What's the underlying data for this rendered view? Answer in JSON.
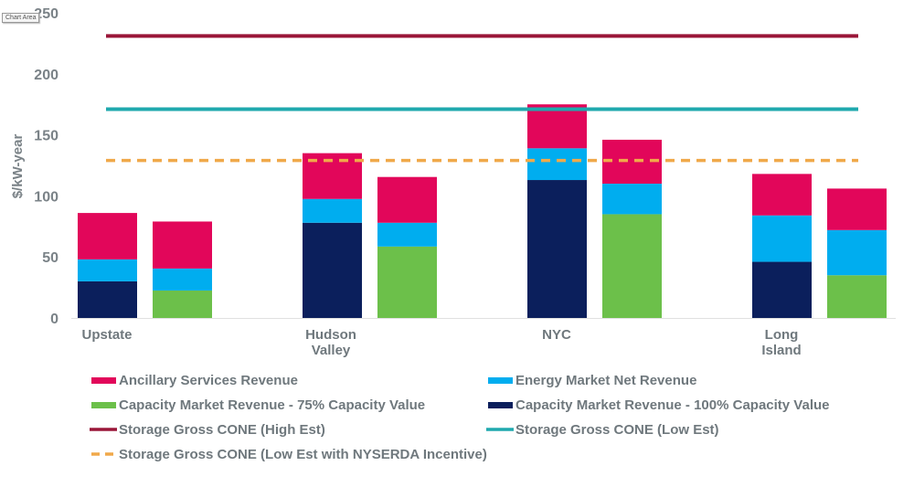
{
  "tooltip": "Chart Area",
  "chart_data": {
    "type": "bar",
    "stacked": true,
    "title": "",
    "xlabel": "",
    "ylabel": "$/kW-year",
    "ylim": [
      0,
      250
    ],
    "yticks": [
      0,
      50,
      100,
      150,
      200,
      250
    ],
    "grid": false,
    "legend_position": "bottom",
    "categories": [
      "Upstate",
      "Hudson Valley",
      "NYC",
      "Long Island"
    ],
    "category_labels": [
      [
        "Upstate"
      ],
      [
        "Hudson",
        "Valley"
      ],
      [
        "NYC"
      ],
      [
        "Long",
        "Island"
      ]
    ],
    "bars_per_category": [
      {
        "name": "100% Capacity Value case",
        "base_series": "Capacity Market Revenue - 100% Capacity Value"
      },
      {
        "name": "75% Capacity Value case",
        "base_series": "Capacity Market Revenue - 75% Capacity Value"
      }
    ],
    "series": [
      {
        "name": "Capacity Market Revenue - 100% Capacity Value",
        "color": "#0b1f5c",
        "bar_index": 0,
        "values": [
          30,
          78,
          113,
          46
        ]
      },
      {
        "name": "Capacity Market Revenue - 75% Capacity Value",
        "color": "#6cc04a",
        "bar_index": 1,
        "values": [
          22.5,
          58.5,
          85,
          35
        ]
      },
      {
        "name": "Energy Market Net Revenue",
        "color": "#00adef",
        "bar_index": "both",
        "values_bar0": [
          18,
          19.5,
          26,
          38
        ],
        "values_bar1": [
          18,
          19.5,
          25,
          37
        ]
      },
      {
        "name": "Ancillary Services Revenue",
        "color": "#e2065a",
        "bar_index": "both",
        "values_bar0": [
          38,
          37.5,
          36,
          34
        ],
        "values_bar1": [
          38.5,
          37.5,
          36,
          34
        ]
      }
    ],
    "reference_lines": [
      {
        "name": "Storage Gross CONE (High Est)",
        "value": 231,
        "color": "#9a1638",
        "style": "solid"
      },
      {
        "name": "Storage Gross CONE (Low Est)",
        "value": 171,
        "color": "#1fa9ae",
        "style": "solid"
      },
      {
        "name": "Storage Gross CONE (Low Est with NYSERDA Incentive)",
        "value": 129,
        "color": "#f0a94a",
        "style": "dashed"
      }
    ],
    "legend": [
      {
        "label": "Ancillary Services Revenue",
        "color": "#e2065a",
        "kind": "box"
      },
      {
        "label": "Energy Market Net Revenue",
        "color": "#00adef",
        "kind": "box"
      },
      {
        "label": "Capacity Market Revenue - 75% Capacity Value",
        "color": "#6cc04a",
        "kind": "box"
      },
      {
        "label": "Capacity Market Revenue - 100% Capacity Value",
        "color": "#0b1f5c",
        "kind": "box"
      },
      {
        "label": "Storage Gross CONE (High Est)",
        "color": "#9a1638",
        "kind": "line"
      },
      {
        "label": "Storage Gross CONE (Low Est)",
        "color": "#1fa9ae",
        "kind": "line"
      },
      {
        "label": "Storage Gross CONE (Low Est with NYSERDA Incentive)",
        "color": "#f0a94a",
        "kind": "dash"
      }
    ]
  }
}
